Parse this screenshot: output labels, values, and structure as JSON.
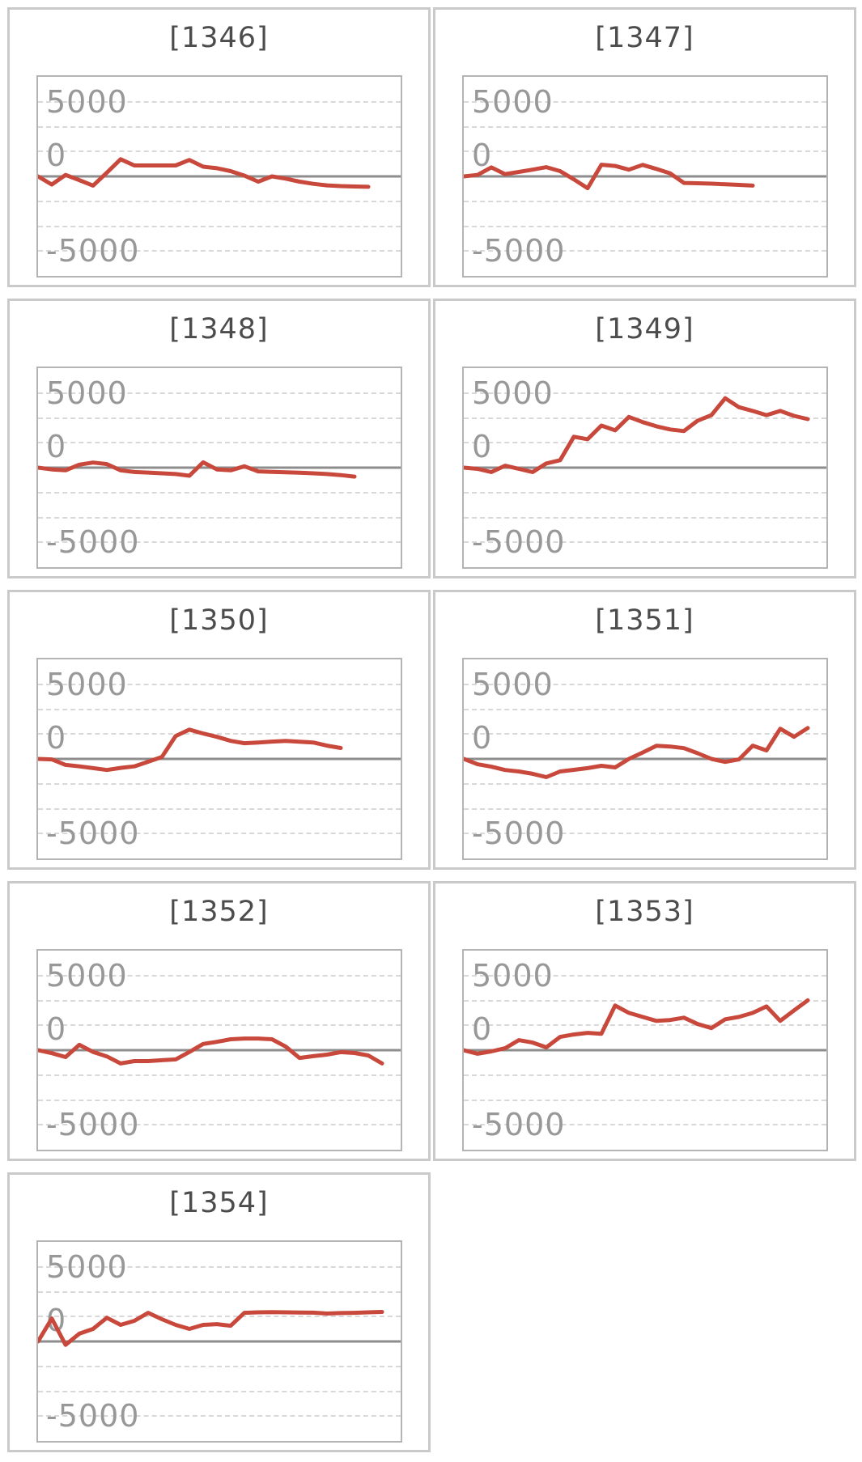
{
  "page": {
    "background": "#ffffff",
    "description": "Grid of nine sparkline-style line charts numbered [1346] to [1354]"
  },
  "colors": {
    "series_red": "#c9483c",
    "title_text": "#4c4c4c",
    "axis_label_text": "#989898",
    "card_border": "#cacaca",
    "plot_border": "#b4b4b4",
    "gridline_dashed": "#d8d8d8",
    "zero_line": "#8d8d8d"
  },
  "chart_data": {
    "type": "line",
    "layout": "two-column grid of small multiples, last row has single chart in left column",
    "legend": "none",
    "x_axis": {
      "visible": false
    },
    "y_axis": {
      "tick_labels": [
        "5000",
        "0",
        "-5000"
      ],
      "tick_values": [
        5000,
        0,
        -5000
      ],
      "ylim": [
        -6667,
        6667
      ],
      "gridline_step": 1667,
      "gridlines": "dashed horizontal at 1/8 intervals of plot height",
      "zero_baseline": "solid dark gray line at vertical center"
    },
    "charts": [
      {
        "title": "[1346]",
        "values": [
          0,
          -550,
          100,
          -250,
          -620,
          250,
          1150,
          730,
          730,
          730,
          730,
          1100,
          650,
          550,
          350,
          50,
          -350,
          0,
          -150,
          -350,
          -500,
          -600,
          -650,
          -680,
          -700
        ]
      },
      {
        "title": "[1347]",
        "values": [
          0,
          100,
          600,
          150,
          300,
          450,
          620,
          350,
          -200,
          -790,
          780,
          700,
          450,
          770,
          500,
          200,
          -440,
          -460,
          -490,
          -530,
          -570,
          -620
        ]
      },
      {
        "title": "[1348]",
        "values": [
          0,
          -120,
          -180,
          200,
          340,
          240,
          -180,
          -290,
          -330,
          -380,
          -430,
          -540,
          360,
          -120,
          -180,
          90,
          -250,
          -280,
          -310,
          -340,
          -380,
          -430,
          -500,
          -600
        ]
      },
      {
        "title": "[1349]",
        "values": [
          0,
          -80,
          -300,
          130,
          -80,
          -300,
          280,
          500,
          2070,
          1900,
          2820,
          2500,
          3400,
          3050,
          2770,
          2560,
          2450,
          3150,
          3520,
          4650,
          4050,
          3800,
          3520,
          3800,
          3470,
          3250
        ]
      },
      {
        "title": "[1350]",
        "values": [
          0,
          -30,
          -400,
          -500,
          -620,
          -740,
          -600,
          -500,
          -190,
          130,
          1530,
          1960,
          1700,
          1480,
          1210,
          1050,
          1100,
          1160,
          1210,
          1150,
          1100,
          890,
          730
        ]
      },
      {
        "title": "[1351]",
        "values": [
          0,
          -360,
          -520,
          -740,
          -840,
          -1000,
          -1220,
          -840,
          -730,
          -620,
          -460,
          -570,
          0,
          430,
          880,
          830,
          720,
          380,
          0,
          -200,
          -30,
          890,
          570,
          2020,
          1480,
          2070
        ]
      },
      {
        "title": "[1352]",
        "values": [
          0,
          -200,
          -460,
          360,
          -120,
          -420,
          -890,
          -730,
          -730,
          -670,
          -620,
          -120,
          420,
          560,
          730,
          780,
          780,
          730,
          240,
          -520,
          -400,
          -300,
          -130,
          -190,
          -350,
          -890
        ]
      },
      {
        "title": "[1353]",
        "values": [
          0,
          -240,
          -80,
          130,
          670,
          510,
          190,
          890,
          1050,
          1160,
          1100,
          2990,
          2500,
          2230,
          1960,
          2020,
          2180,
          1750,
          1480,
          2070,
          2230,
          2500,
          2930,
          1960,
          2660,
          3340
        ]
      },
      {
        "title": "[1354]",
        "values": [
          0,
          1540,
          -230,
          520,
          840,
          1590,
          1110,
          1380,
          1920,
          1490,
          1110,
          840,
          1110,
          1160,
          1050,
          1920,
          1950,
          1960,
          1950,
          1940,
          1930,
          1870,
          1900,
          1920,
          1950,
          1980
        ]
      }
    ]
  }
}
